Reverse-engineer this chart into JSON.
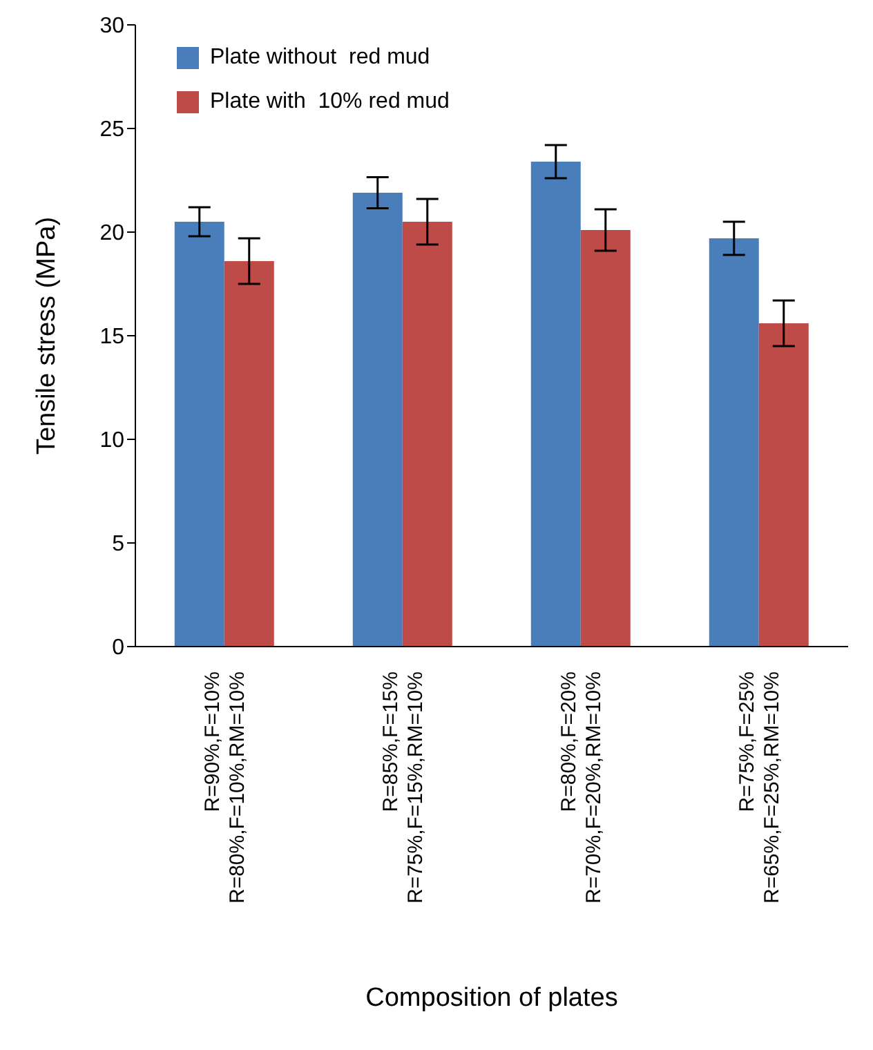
{
  "chart_data": {
    "type": "bar",
    "xlabel": "Composition of plates",
    "ylabel": "Tensile stress (MPa)",
    "categories": [
      "R=90%,F=10%\nR=80%,F=10%,RM=10%",
      "R=85%,F=15%\nR=75%,F=15%,RM=10%",
      "R=80%,F=20%\nR=70%,F=20%,RM=10%",
      "R=75%,F=25%\nR=65%,F=25%,RM=10%"
    ],
    "series": [
      {
        "name": "Plate without  red mud",
        "color": "#4a7ebb",
        "values": [
          20.5,
          21.9,
          23.4,
          19.7
        ],
        "errors": [
          0.7,
          0.75,
          0.8,
          0.8
        ]
      },
      {
        "name": "Plate with  10% red mud",
        "color": "#be4b48",
        "values": [
          18.6,
          20.5,
          20.1,
          15.6
        ],
        "errors": [
          1.1,
          1.1,
          1.0,
          1.1
        ]
      }
    ],
    "ylim": [
      0,
      30
    ],
    "yticks": [
      0,
      5,
      10,
      15,
      20,
      25,
      30
    ],
    "grid": false,
    "legend": "top left"
  }
}
